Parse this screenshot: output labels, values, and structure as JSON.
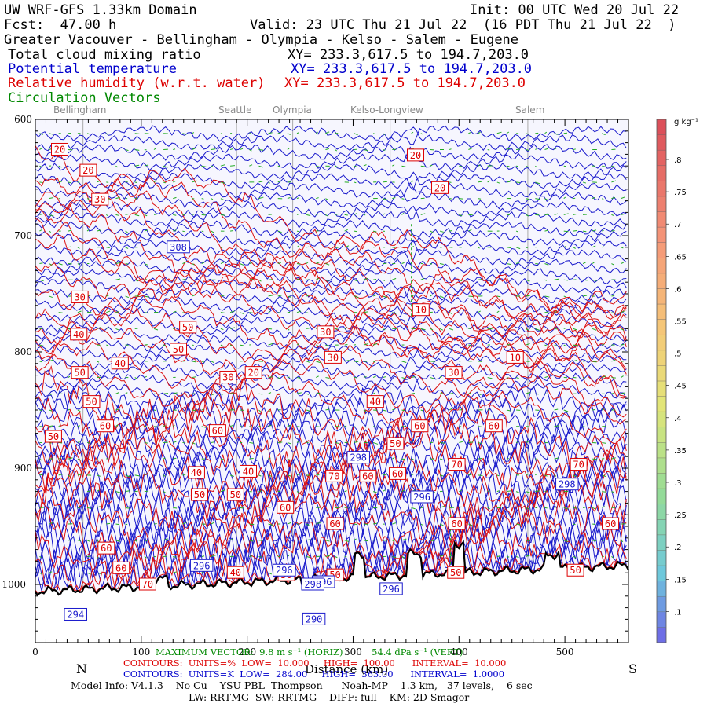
{
  "header": {
    "model": "UW WRF-GFS 1.33km Domain",
    "init": "Init: 00 UTC Wed 20 Jul 22",
    "fcst": "Fcst:  47.00 h",
    "valid": "Valid: 23 UTC Thu 21 Jul 22  (16 PDT Thu 21 Jul 22  )",
    "region": "Greater Vacouver - Bellingham - Olympia - Kelso - Salem - Eugene",
    "line_cloud": "Total cloud mixing ratio",
    "xy_cloud": "XY= 233.3,617.5 to 194.7,203.0",
    "line_theta": "Potential temperature",
    "xy_theta": "XY= 233.3,617.5 to 194.7,203.0",
    "line_rh": "Relative humidity (w.r.t. water)",
    "xy_rh": "XY= 233.3,617.5 to 194.7,203.0",
    "line_vec": "Circulation Vectors"
  },
  "towns": [
    "Bellingham",
    "Seattle",
    "Olympia",
    "Kelso-Longview",
    "Salem"
  ],
  "footer": {
    "north": "N",
    "south": "S",
    "distance_label": "Distance (km)",
    "vector_max": "MAXIMUM VECTOR:  9.8 m s⁻¹ (HORIZ)          54.4 dPa s⁻¹ (VERT)",
    "contours_rh": "CONTOURS:  UNITS=%  LOW=  10.000     HIGH=  100.00      INTERVAL=  10.000",
    "contours_theta": "CONTOURS:  UNITS=K  LOW=  284.00     HIGH=  363.00      INTERVAL=  1.0000",
    "model_info": "Model Info: V4.1.3    No Cu    YSU PBL  Thompson      Noah-MP    1.3 km,   37 levels,    6 sec",
    "model_info2": "LW: RRTMG  SW: RRTMG    DIFF: full    KM: 2D Smagor"
  },
  "colorbar": {
    "unit": "g kg⁻¹",
    "labels": [
      ".8",
      ".75",
      ".7",
      ".65",
      ".6",
      ".55",
      ".5",
      ".45",
      ".4",
      ".35",
      ".3",
      ".25",
      ".2",
      ".15",
      ".1"
    ]
  },
  "chart_data": {
    "type": "cross-section contour",
    "xlabel": "Distance (km)",
    "ylabel": "Pressure (hPa)",
    "xlim": [
      0,
      560
    ],
    "ylim": [
      1050,
      600
    ],
    "x_ticks": [
      0,
      100,
      200,
      300,
      400,
      500
    ],
    "y_ticks": [
      600,
      700,
      800,
      900,
      1000
    ],
    "town_markers_km": [
      45,
      190,
      243,
      335,
      465
    ],
    "theta_labels": [
      {
        "x": 135,
        "p": 710,
        "v": "308"
      },
      {
        "x": 305,
        "p": 891,
        "v": "298"
      },
      {
        "x": 365,
        "p": 925,
        "v": "296"
      },
      {
        "x": 502,
        "p": 914,
        "v": "298"
      },
      {
        "x": 157,
        "p": 984,
        "v": "296"
      },
      {
        "x": 235,
        "p": 988,
        "v": "296"
      },
      {
        "x": 272,
        "p": 998,
        "v": "296"
      },
      {
        "x": 336,
        "p": 1004,
        "v": "296"
      },
      {
        "x": 262,
        "p": 1000,
        "v": "298"
      },
      {
        "x": 38,
        "p": 1026,
        "v": "294"
      },
      {
        "x": 263,
        "p": 1030,
        "v": "290"
      }
    ],
    "rh_labels": [
      {
        "x": 23,
        "p": 626,
        "v": "20"
      },
      {
        "x": 50,
        "p": 644,
        "v": "20"
      },
      {
        "x": 61,
        "p": 669,
        "v": "30"
      },
      {
        "x": 359,
        "p": 631,
        "v": "20"
      },
      {
        "x": 382,
        "p": 659,
        "v": "20"
      },
      {
        "x": 42,
        "p": 753,
        "v": "30"
      },
      {
        "x": 41,
        "p": 785,
        "v": "40"
      },
      {
        "x": 144,
        "p": 779,
        "v": "50"
      },
      {
        "x": 135,
        "p": 798,
        "v": "50"
      },
      {
        "x": 80,
        "p": 810,
        "v": "40"
      },
      {
        "x": 42,
        "p": 818,
        "v": "50"
      },
      {
        "x": 53,
        "p": 843,
        "v": "50"
      },
      {
        "x": 66,
        "p": 864,
        "v": "60"
      },
      {
        "x": 17,
        "p": 873,
        "v": "50"
      },
      {
        "x": 182,
        "p": 822,
        "v": "30"
      },
      {
        "x": 206,
        "p": 818,
        "v": "20"
      },
      {
        "x": 274,
        "p": 783,
        "v": "30"
      },
      {
        "x": 281,
        "p": 805,
        "v": "30"
      },
      {
        "x": 364,
        "p": 764,
        "v": "10"
      },
      {
        "x": 395,
        "p": 818,
        "v": "30"
      },
      {
        "x": 453,
        "p": 805,
        "v": "10"
      },
      {
        "x": 321,
        "p": 843,
        "v": "40"
      },
      {
        "x": 172,
        "p": 868,
        "v": "60"
      },
      {
        "x": 363,
        "p": 864,
        "v": "60"
      },
      {
        "x": 433,
        "p": 864,
        "v": "60"
      },
      {
        "x": 340,
        "p": 879,
        "v": "50"
      },
      {
        "x": 152,
        "p": 904,
        "v": "40"
      },
      {
        "x": 201,
        "p": 903,
        "v": "40"
      },
      {
        "x": 282,
        "p": 907,
        "v": "70"
      },
      {
        "x": 314,
        "p": 907,
        "v": "60"
      },
      {
        "x": 342,
        "p": 905,
        "v": "60"
      },
      {
        "x": 398,
        "p": 897,
        "v": "70"
      },
      {
        "x": 513,
        "p": 897,
        "v": "70"
      },
      {
        "x": 155,
        "p": 923,
        "v": "50"
      },
      {
        "x": 189,
        "p": 923,
        "v": "50"
      },
      {
        "x": 236,
        "p": 934,
        "v": "60"
      },
      {
        "x": 283,
        "p": 948,
        "v": "60"
      },
      {
        "x": 398,
        "p": 948,
        "v": "60"
      },
      {
        "x": 543,
        "p": 948,
        "v": "60"
      },
      {
        "x": 67,
        "p": 969,
        "v": "60"
      },
      {
        "x": 81,
        "p": 986,
        "v": "60"
      },
      {
        "x": 106,
        "p": 1000,
        "v": "70"
      },
      {
        "x": 189,
        "p": 990,
        "v": "40"
      },
      {
        "x": 237,
        "p": 992,
        "v": "50"
      },
      {
        "x": 283,
        "p": 992,
        "v": "50"
      },
      {
        "x": 397,
        "p": 990,
        "v": "50"
      },
      {
        "x": 510,
        "p": 988,
        "v": "50"
      }
    ]
  }
}
